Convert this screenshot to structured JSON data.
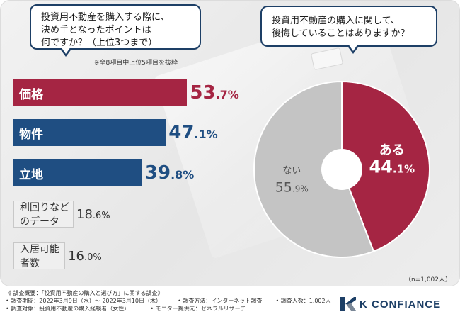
{
  "question_left": {
    "line1": "投資用不動産を購入する際に、",
    "line2": "決め手となったポイントは",
    "line3": "何ですか？（上位3つまで）"
  },
  "note": "※全8項目中上位5項目を抜粋",
  "question_right": {
    "line1": "投資用不動産の購入に関して、",
    "line2": "後悔していることはありますか？"
  },
  "respondents": "（n=1,002人）",
  "colors": {
    "crimson": "#a52543",
    "navy": "#1f4e82",
    "gray": "#c4c4c4"
  },
  "chart_data": [
    {
      "type": "bar",
      "orientation": "horizontal",
      "title": "投資用不動産を購入する際に、決め手となったポイントは何ですか？（上位3つまで）",
      "unit": "%",
      "categories": [
        "価格",
        "物件",
        "立地",
        "利回りなどのデータ",
        "入居可能者数"
      ],
      "values": [
        53.7,
        47.1,
        39.8,
        18.6,
        16.0
      ],
      "labels": [
        {
          "int": "53",
          "dec": ".7%"
        },
        {
          "int": "47",
          "dec": ".1%"
        },
        {
          "int": "39",
          "dec": ".8%"
        },
        {
          "int": "18",
          "dec": ".6%"
        },
        {
          "int": "16",
          "dec": ".0%"
        }
      ]
    },
    {
      "type": "pie",
      "title": "投資用不動産の購入に関して、後悔していることはありますか？",
      "unit": "%",
      "categories": [
        "ある",
        "ない"
      ],
      "values": [
        44.1,
        55.9
      ],
      "labels": [
        {
          "int": "44",
          "dec": ".1%"
        },
        {
          "int": "55",
          "dec": ".9%"
        }
      ]
    }
  ],
  "footer": {
    "line1": "《 調査概要：「投資用不動産の購入と選び方」に関する調査》",
    "period": "• 調査期間：2022年3月9日（水）～ 2022年3月10日（木）",
    "method": "• 調査方法：インターネット調査",
    "count": "• 調査人数：1,002人",
    "target": "• 調査対象：投資用不動産の購入経験者（女性）",
    "monitor": "• モニター提供元：ゼネラルリサーチ"
  },
  "logo": {
    "text": "K CONFIANCE"
  }
}
